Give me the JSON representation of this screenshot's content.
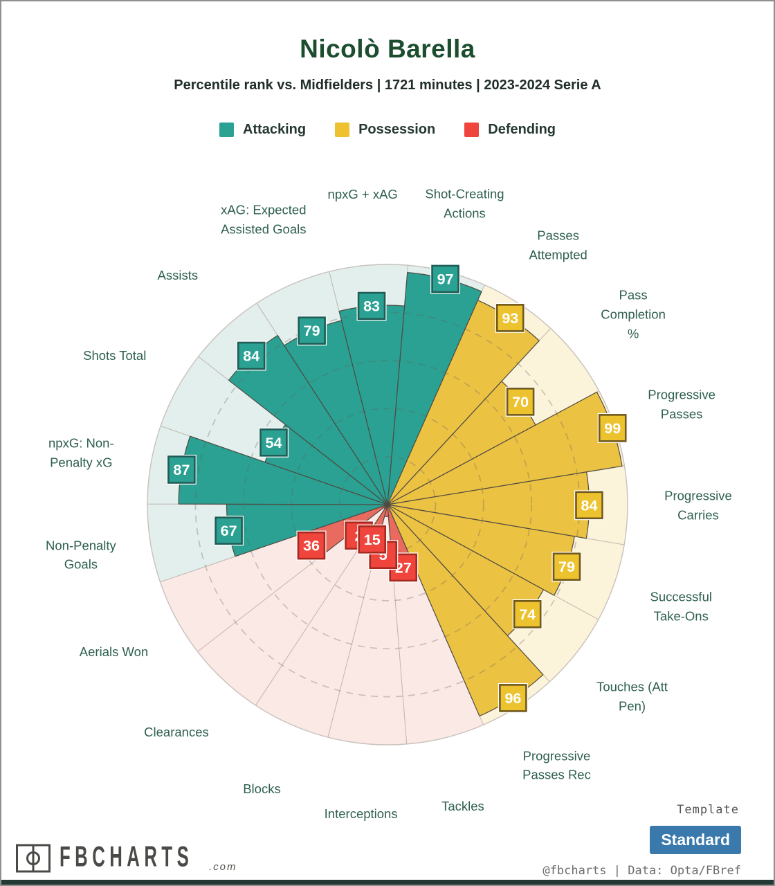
{
  "header": {
    "title": "Nicolò Barella",
    "subtitle": "Percentile rank vs. Midfielders | 1721 minutes | 2023-2024 Serie A"
  },
  "legend": [
    {
      "label": "Attacking",
      "color": "#2aa192"
    },
    {
      "label": "Possession",
      "color": "#eec22f"
    },
    {
      "label": "Defending",
      "color": "#ef453d"
    }
  ],
  "chart_data": {
    "type": "pie",
    "variant": "percentile-pizza",
    "title": "Nicolò Barella",
    "subtitle": "Percentile rank vs. Midfielders | 1721 minutes | 2023-2024 Serie A",
    "scale": [
      0,
      100
    ],
    "gridlines": [
      20,
      40,
      60,
      80
    ],
    "legend_position": "top",
    "categories": [
      "Shot-Creating Actions",
      "Passes Attempted",
      "Pass Completion %",
      "Progressive Passes",
      "Progressive Carries",
      "Successful Take-Ons",
      "Touches (Att Pen)",
      "Progressive Passes Rec",
      "Tackles",
      "Interceptions",
      "Blocks",
      "Clearances",
      "Aerials Won",
      "Non-Penalty Goals",
      "npxG: Non-Penalty xG",
      "Shots Total",
      "Assists",
      "xAG: Expected Assisted Goals",
      "npxG + xAG"
    ],
    "values": [
      97,
      93,
      70,
      99,
      84,
      79,
      74,
      96,
      27,
      5,
      15,
      2,
      36,
      67,
      87,
      54,
      84,
      79,
      83
    ],
    "groups": [
      "attacking",
      "possession",
      "possession",
      "possession",
      "possession",
      "possession",
      "possession",
      "possession",
      "defending",
      "defending",
      "defending",
      "defending",
      "defending",
      "attacking",
      "attacking",
      "attacking",
      "attacking",
      "attacking",
      "attacking"
    ],
    "group_colors": {
      "attacking": {
        "fill": "#2aa192",
        "badge": "#2aa192",
        "border": "#1f5c56",
        "light": "#e2efec"
      },
      "possession": {
        "fill": "#ecc243",
        "badge": "#edc22f",
        "border": "#70591b",
        "light": "#fbf3da"
      },
      "defending": {
        "fill": "#e96a5e",
        "badge": "#ef453d",
        "border": "#a6291f",
        "light": "#fbe9e6"
      }
    }
  },
  "footer": {
    "brand": "FBCHARTS",
    "brand_suffix": ".com",
    "template_label": "Template",
    "template_value": "Standard",
    "credit": "@fbcharts | Data: Opta/FBref"
  }
}
